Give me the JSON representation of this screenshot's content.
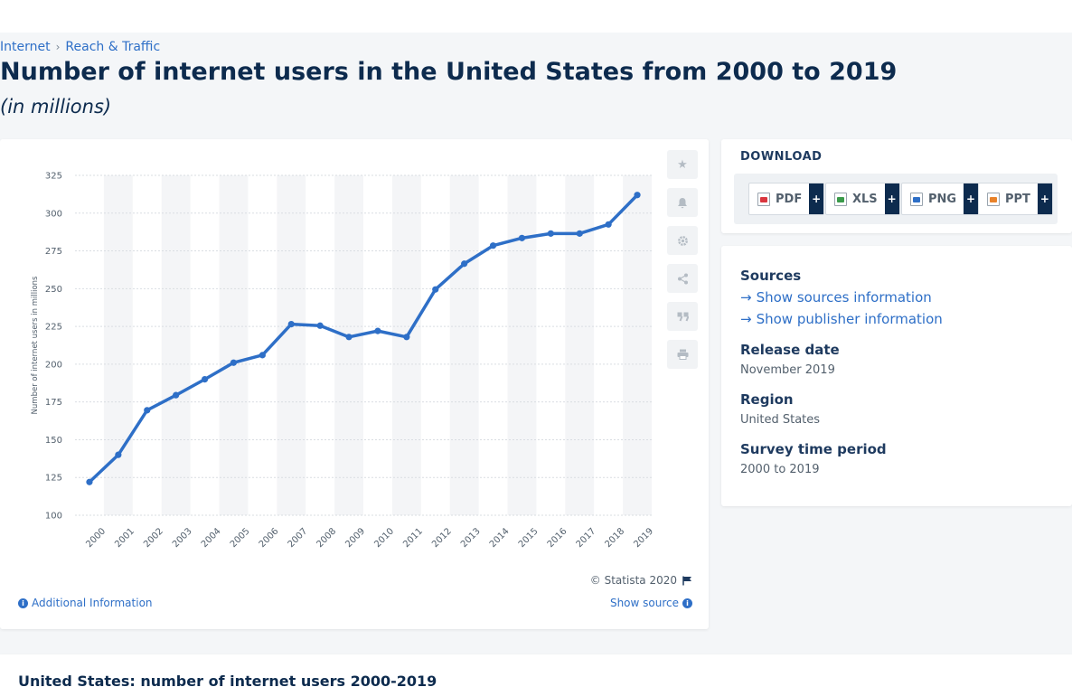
{
  "breadcrumb": {
    "items": [
      "Internet",
      "Reach & Traffic"
    ],
    "separator": "›"
  },
  "page": {
    "title": "Number of internet users in the United States from 2000 to 2019",
    "subtitle": "(in millions)"
  },
  "chart_footer": {
    "copyright": "© Statista 2020",
    "additional_info": "Additional Information",
    "show_source": "Show source"
  },
  "download": {
    "title": "DOWNLOAD",
    "formats": [
      {
        "label": "PDF",
        "icon": "pdf-file-icon",
        "color": "#d9363e"
      },
      {
        "label": "XLS",
        "icon": "xls-file-icon",
        "color": "#3a9a4a"
      },
      {
        "label": "PNG",
        "icon": "png-file-icon",
        "color": "#2e6fc7"
      },
      {
        "label": "PPT",
        "icon": "ppt-file-icon",
        "color": "#e8822a"
      }
    ],
    "plus": "+"
  },
  "meta": {
    "sources_label": "Sources",
    "show_sources": "Show sources information",
    "show_publisher": "Show publisher information",
    "release_date_label": "Release date",
    "release_date": "November 2019",
    "region_label": "Region",
    "region": "United States",
    "survey_period_label": "Survey time period",
    "survey_period": "2000 to 2019"
  },
  "bottom": {
    "title": "United States: number of internet users 2000-2019"
  },
  "tools": [
    "star-icon",
    "bell-icon",
    "gear-icon",
    "share-icon",
    "quote-icon",
    "print-icon"
  ],
  "chart_data": {
    "type": "line",
    "categories": [
      "2000",
      "2001",
      "2002",
      "2003",
      "2004",
      "2005",
      "2006",
      "2007",
      "2008",
      "2009",
      "2010",
      "2011",
      "2012",
      "2013",
      "2014",
      "2015",
      "2016",
      "2017",
      "2018",
      "2019"
    ],
    "series": [
      {
        "values": [
          122,
          140,
          169.5,
          179.5,
          190,
          201,
          206,
          226.5,
          225.5,
          218,
          222,
          218,
          249.5,
          266.5,
          278.5,
          283.5,
          286.5,
          286.5,
          292.5,
          312
        ]
      }
    ],
    "ylabel": "Number of internet users in millions",
    "ylim": [
      100,
      325
    ],
    "yticks": [
      100,
      125,
      150,
      175,
      200,
      225,
      250,
      275,
      300,
      325
    ],
    "color": "#2e6fc7",
    "grid": true
  }
}
